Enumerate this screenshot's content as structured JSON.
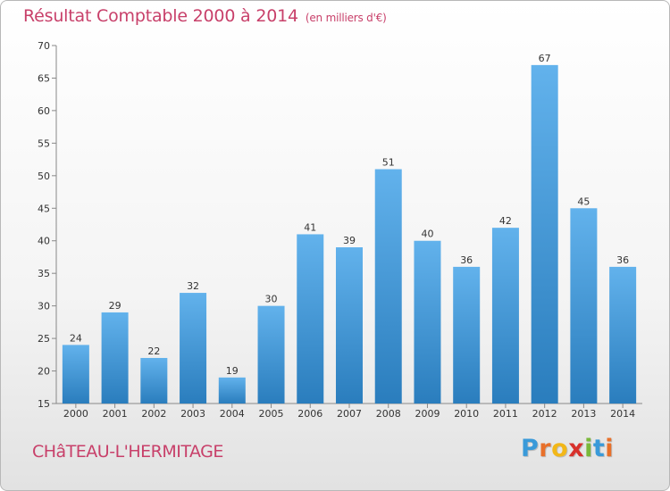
{
  "title": "Résultat Comptable 2000 à 2014",
  "subtitle": "(en milliers d'€)",
  "commune": "CHâTEAU-L'HERMITAGE",
  "brand": {
    "letters": [
      "P",
      "r",
      "o",
      "x",
      "i",
      "t",
      "i"
    ],
    "colors": [
      "#3a9ad9",
      "#e8702a",
      "#f2b718",
      "#d8312c",
      "#7ab83a",
      "#3a9ad9",
      "#e8702a"
    ]
  },
  "colors": {
    "bar_top": "#62b2ec",
    "bar_bottom": "#2a7dbd",
    "title": "#c8406a",
    "axis": "#888888"
  },
  "chart_data": {
    "type": "bar",
    "title": "Résultat Comptable 2000 à 2014",
    "xlabel": "",
    "ylabel": "",
    "ylim": [
      15,
      70
    ],
    "yticks": [
      15,
      20,
      25,
      30,
      35,
      40,
      45,
      50,
      55,
      60,
      65,
      70
    ],
    "grid": false,
    "categories": [
      "2000",
      "2001",
      "2002",
      "2003",
      "2004",
      "2005",
      "2006",
      "2007",
      "2008",
      "2009",
      "2010",
      "2011",
      "2012",
      "2013",
      "2014"
    ],
    "values": [
      24,
      29,
      22,
      32,
      19,
      30,
      41,
      39,
      51,
      40,
      36,
      42,
      67,
      45,
      36
    ]
  }
}
